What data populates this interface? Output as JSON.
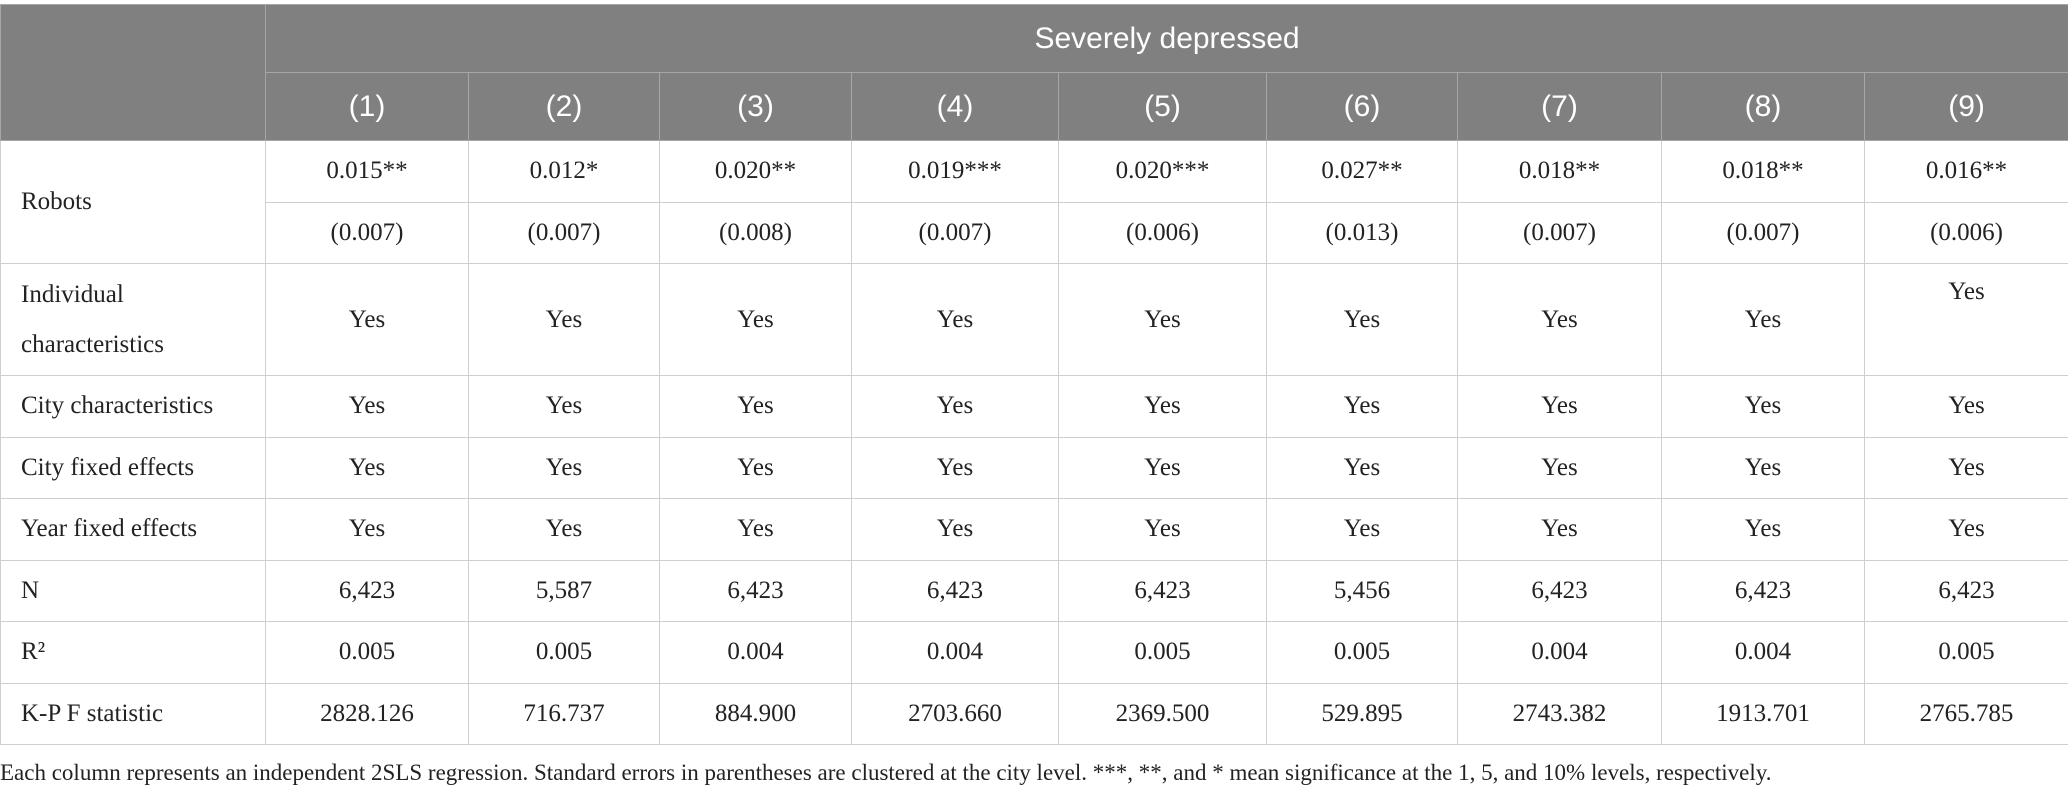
{
  "header": {
    "title": "Severely depressed",
    "columns": [
      "(1)",
      "(2)",
      "(3)",
      "(4)",
      "(5)",
      "(6)",
      "(7)",
      "(8)",
      "(9)"
    ]
  },
  "robots": {
    "label": "Robots",
    "coefficients": [
      "0.015**",
      "0.012*",
      "0.020**",
      "0.019***",
      "0.020***",
      "0.027**",
      "0.018**",
      "0.018**",
      "0.016**"
    ],
    "standard_errors": [
      "(0.007)",
      "(0.007)",
      "(0.008)",
      "(0.007)",
      "(0.006)",
      "(0.013)",
      "(0.007)",
      "(0.007)",
      "(0.006)"
    ]
  },
  "rows": [
    {
      "label": "Individual characteristics",
      "values": [
        "Yes",
        "Yes",
        "Yes",
        "Yes",
        "Yes",
        "Yes",
        "Yes",
        "Yes",
        "Yes"
      ]
    },
    {
      "label": "City characteristics",
      "values": [
        "Yes",
        "Yes",
        "Yes",
        "Yes",
        "Yes",
        "Yes",
        "Yes",
        "Yes",
        "Yes"
      ]
    },
    {
      "label": "City fixed effects",
      "values": [
        "Yes",
        "Yes",
        "Yes",
        "Yes",
        "Yes",
        "Yes",
        "Yes",
        "Yes",
        "Yes"
      ]
    },
    {
      "label": "Year fixed effects",
      "values": [
        "Yes",
        "Yes",
        "Yes",
        "Yes",
        "Yes",
        "Yes",
        "Yes",
        "Yes",
        "Yes"
      ]
    },
    {
      "label": "N",
      "values": [
        "6,423",
        "5,587",
        "6,423",
        "6,423",
        "6,423",
        "5,456",
        "6,423",
        "6,423",
        "6,423"
      ]
    },
    {
      "label": "R²",
      "values": [
        "0.005",
        "0.005",
        "0.004",
        "0.004",
        "0.005",
        "0.005",
        "0.004",
        "0.004",
        "0.005"
      ]
    },
    {
      "label": "K-P F statistic",
      "values": [
        "2828.126",
        "716.737",
        "884.900",
        "2703.660",
        "2369.500",
        "529.895",
        "2743.382",
        "1913.701",
        "2765.785"
      ]
    }
  ],
  "footnote": "Each column represents an independent 2SLS regression. Standard errors in parentheses are clustered at the city level. ***, **, and * mean significance at the 1, 5, and 10% levels, respectively."
}
